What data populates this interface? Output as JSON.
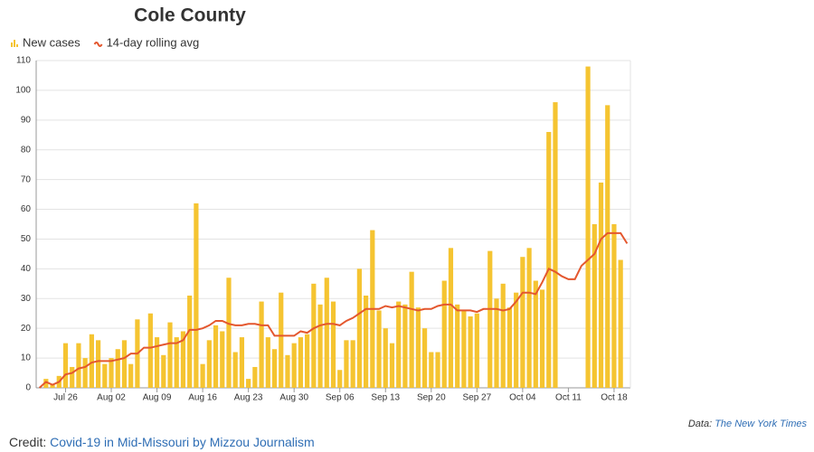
{
  "chart_data": {
    "type": "bar",
    "title": "Cole County",
    "categories": [
      null,
      null,
      null,
      null,
      "Jul 26",
      null,
      null,
      null,
      null,
      null,
      null,
      "Aug 02",
      null,
      null,
      null,
      null,
      null,
      null,
      "Aug 09",
      null,
      null,
      null,
      null,
      null,
      null,
      "Aug 16",
      null,
      null,
      null,
      null,
      null,
      null,
      "Aug 23",
      null,
      null,
      null,
      null,
      null,
      null,
      "Aug 30",
      null,
      null,
      null,
      null,
      null,
      null,
      "Sep 06",
      null,
      null,
      null,
      null,
      null,
      null,
      "Sep 13",
      null,
      null,
      null,
      null,
      null,
      null,
      "Sep 20",
      null,
      null,
      null,
      null,
      null,
      null,
      "Sep 27",
      null,
      null,
      null,
      null,
      null,
      null,
      "Oct 04",
      null,
      null,
      null,
      null,
      null,
      null,
      "Oct 11",
      null,
      null,
      null,
      null,
      null,
      null,
      "Oct 18",
      null,
      null
    ],
    "series": [
      {
        "name": "New cases",
        "type": "bar",
        "color": "#f5c431",
        "values": [
          0,
          3,
          1,
          4,
          15,
          7,
          15,
          10,
          18,
          16,
          8,
          10,
          13,
          16,
          8,
          23,
          0,
          25,
          17,
          11,
          22,
          17,
          19,
          31,
          62,
          8,
          16,
          21,
          19,
          37,
          12,
          17,
          3,
          7,
          29,
          17,
          13,
          32,
          11,
          15,
          17,
          18,
          35,
          28,
          37,
          29,
          6,
          16,
          16,
          40,
          31,
          53,
          26,
          20,
          15,
          29,
          28,
          39,
          27,
          20,
          12,
          12,
          36,
          47,
          28,
          26,
          24,
          25,
          0,
          46,
          30,
          35,
          27,
          32,
          44,
          47,
          36,
          33,
          86,
          96,
          0,
          0,
          0,
          0,
          108,
          55,
          69,
          95,
          55,
          43,
          0
        ]
      },
      {
        "name": "14-day rolling avg",
        "type": "line",
        "color": "#e4572e",
        "values": [
          0,
          2,
          1,
          2,
          4.5,
          5,
          6.5,
          7,
          8.5,
          9,
          9,
          9,
          9.5,
          10,
          11.5,
          11.5,
          13.5,
          13.5,
          14,
          14.5,
          15,
          15,
          16,
          19.5,
          19.5,
          20,
          21,
          22.5,
          22.5,
          21.5,
          21,
          21,
          21.5,
          21.5,
          21,
          21,
          17.5,
          17.5,
          17.5,
          17.5,
          19,
          18.5,
          20,
          21,
          21.5,
          21.5,
          21,
          22.5,
          23.5,
          25,
          26.5,
          26.5,
          26.5,
          27.5,
          27,
          27.5,
          27,
          26.5,
          26,
          26.5,
          26.5,
          27.5,
          28,
          28,
          26,
          26,
          26,
          25.5,
          26.5,
          26.5,
          26.5,
          26,
          26.5,
          29,
          32,
          32,
          31.5,
          35.5,
          40,
          39,
          37.5,
          36.5,
          36.5,
          41,
          43,
          45,
          50,
          52,
          52,
          52,
          48.5
        ]
      }
    ],
    "ylim": [
      0,
      110
    ],
    "yticks": [
      0,
      10,
      20,
      30,
      40,
      50,
      60,
      70,
      80,
      90,
      100,
      110
    ],
    "grid": true
  },
  "footer": {
    "credit_label": "Credit:",
    "credit_link": "Covid-19 in Mid-Missouri by Mizzou Journalism",
    "data_label": "Data:",
    "data_link": "The New York Times"
  }
}
